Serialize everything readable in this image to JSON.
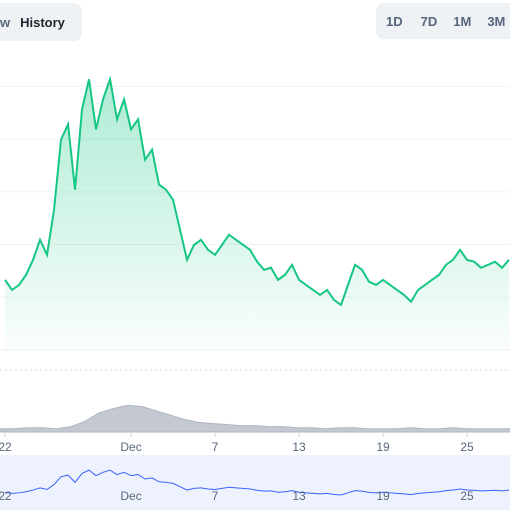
{
  "toolbar": {
    "left": [
      "w",
      "History"
    ],
    "right": [
      "1D",
      "7D",
      "1M",
      "3M"
    ]
  },
  "chart_data": {
    "type": "area",
    "color": "#16c784",
    "x": [
      0,
      0.5,
      1,
      1.5,
      2,
      2.5,
      3,
      3.5,
      4,
      4.5,
      5,
      5.5,
      6,
      6.5,
      7,
      7.5,
      8,
      8.5,
      9,
      9.5,
      10,
      10.5,
      11,
      11.5,
      12,
      12.5,
      13,
      13.5,
      14,
      14.5,
      15,
      15.5,
      16,
      16.5,
      17,
      17.5,
      18,
      18.5,
      19,
      19.5,
      20,
      20.5,
      21,
      21.5,
      22,
      22.5,
      23,
      23.5,
      24,
      24.5,
      25,
      25.5,
      26,
      26.5,
      27,
      27.5,
      28,
      28.5,
      29,
      29.5,
      30,
      30.5,
      31,
      31.5,
      32,
      32.5,
      33,
      33.5,
      34,
      34.5,
      35,
      35.5,
      36
    ],
    "values": [
      26.6,
      22.8,
      24.7,
      28.5,
      34.2,
      41.8,
      36.1,
      53.2,
      79.8,
      85.6,
      60.8,
      91.3,
      102.7,
      83.7,
      95.1,
      102.7,
      87.5,
      95.1,
      83.7,
      87.5,
      72.2,
      76.0,
      62.7,
      60.8,
      57.0,
      45.6,
      34.2,
      39.9,
      41.8,
      38.0,
      36.1,
      39.9,
      43.7,
      41.8,
      39.9,
      38.0,
      33.5,
      30.4,
      31.2,
      26.6,
      28.5,
      32.3,
      26.6,
      24.7,
      22.8,
      20.9,
      22.8,
      19.0,
      17.1,
      24.7,
      32.3,
      30.4,
      25.9,
      24.7,
      26.6,
      24.7,
      22.8,
      20.9,
      18.3,
      22.8,
      24.7,
      26.6,
      28.5,
      32.3,
      34.2,
      38.0,
      34.2,
      33.5,
      31.2,
      32.3,
      33.5,
      31.2,
      34.2
    ],
    "xlim": [
      -0.36,
      36.07
    ],
    "ylim": [
      0,
      110
    ],
    "ygrid": [
      0,
      20,
      40,
      60,
      80,
      100
    ],
    "xticks": [
      {
        "value": 0,
        "label": "22"
      },
      {
        "value": 9,
        "label": "Dec"
      },
      {
        "value": 15,
        "label": "7"
      },
      {
        "value": 21,
        "label": "13"
      },
      {
        "value": 27,
        "label": "19"
      },
      {
        "value": 33,
        "label": "25"
      }
    ],
    "volume": {
      "color": "#c3c8d1",
      "ylim": [
        0,
        30
      ],
      "values": [
        3,
        3,
        4,
        4,
        3,
        5,
        10,
        18,
        22,
        25,
        24,
        20,
        16,
        12,
        9,
        8,
        7,
        6,
        6,
        5,
        5,
        4,
        4,
        3,
        4,
        4,
        3,
        3,
        3,
        4,
        3,
        3,
        4,
        3,
        3,
        3,
        3
      ]
    },
    "navigator": {
      "color": "#3861fb"
    }
  }
}
